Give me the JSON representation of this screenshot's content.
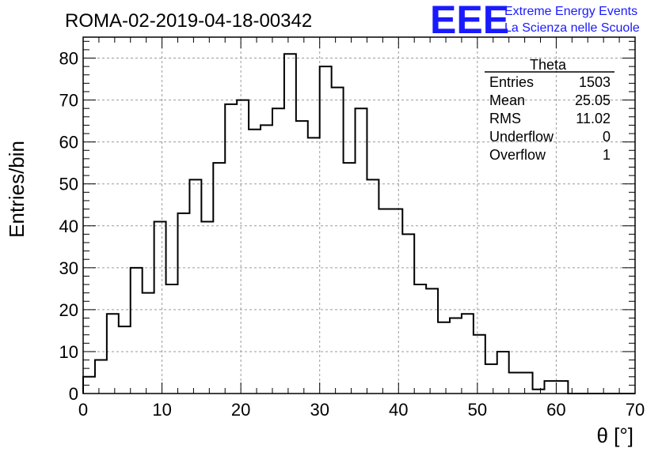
{
  "chart_data": {
    "type": "histogram",
    "title": "ROMA-02-2019-04-18-00342",
    "xlabel": "θ [°]",
    "ylabel": "Entries/bin",
    "xlim": [
      0,
      70
    ],
    "ylim": [
      0,
      85
    ],
    "grid": true,
    "x_ticks": [
      0,
      10,
      20,
      30,
      40,
      50,
      60,
      70
    ],
    "y_ticks": [
      0,
      10,
      20,
      30,
      40,
      50,
      60,
      70,
      80
    ],
    "bin_width": 1.5,
    "bin_start": 0,
    "values": [
      4,
      8,
      19,
      16,
      30,
      24,
      41,
      26,
      43,
      51,
      41,
      55,
      69,
      70,
      63,
      64,
      68,
      81,
      65,
      61,
      78,
      73,
      55,
      68,
      51,
      44,
      44,
      38,
      26,
      25,
      17,
      18,
      19,
      14,
      7,
      10,
      5,
      5,
      1,
      3,
      3,
      0,
      0,
      0,
      0,
      0,
      0
    ],
    "line_color": "#000000"
  },
  "stats_box": {
    "title": "Theta",
    "rows": [
      {
        "label": "Entries",
        "value": "1503"
      },
      {
        "label": "Mean",
        "value": "25.05"
      },
      {
        "label": "RMS",
        "value": "11.02"
      },
      {
        "label": "Underflow",
        "value": "0"
      },
      {
        "label": "Overflow",
        "value": "1"
      }
    ]
  },
  "logo": {
    "letters": "EEE",
    "line1": "Extreme Energy Events",
    "line2": "La Scienza nelle Scuole",
    "color": "#1a1aff"
  }
}
